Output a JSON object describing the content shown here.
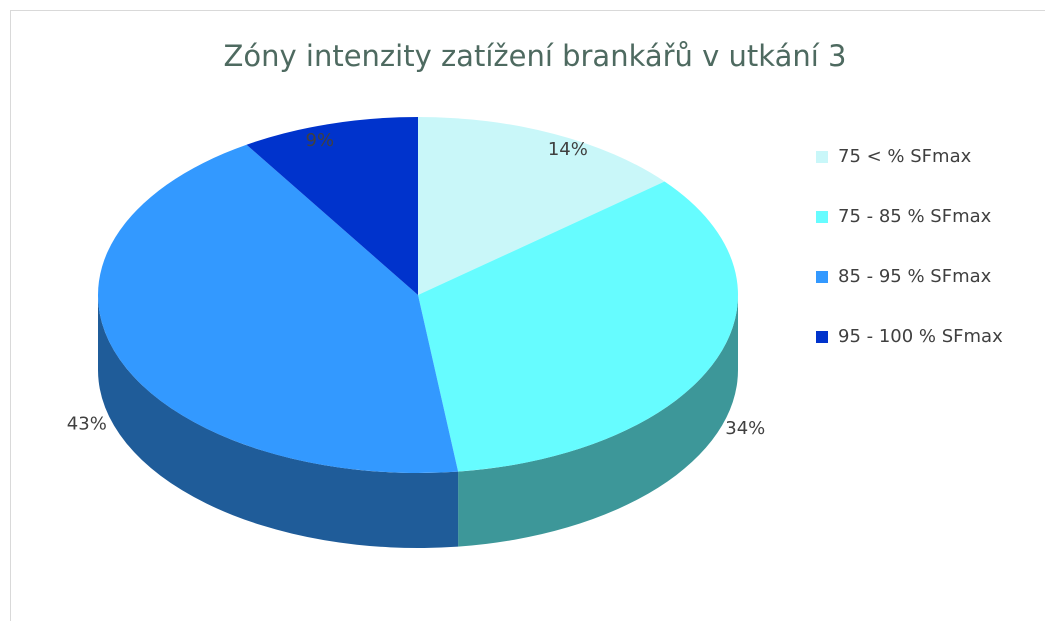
{
  "chart_data": {
    "type": "pie",
    "title": "Zóny intenzity zatížení brankářů v utkání 3",
    "categories": [
      "75 < % SFmax",
      "75 - 85 % SFmax",
      "85 - 95 % SFmax",
      "95 - 100 % SFmax"
    ],
    "values": [
      14,
      34,
      43,
      9
    ],
    "value_labels": [
      "14%",
      "34%",
      "43%",
      "9%"
    ],
    "colors": [
      "#c9f7f9",
      "#66fcff",
      "#3399ff",
      "#0033cc"
    ],
    "legend": "right"
  }
}
